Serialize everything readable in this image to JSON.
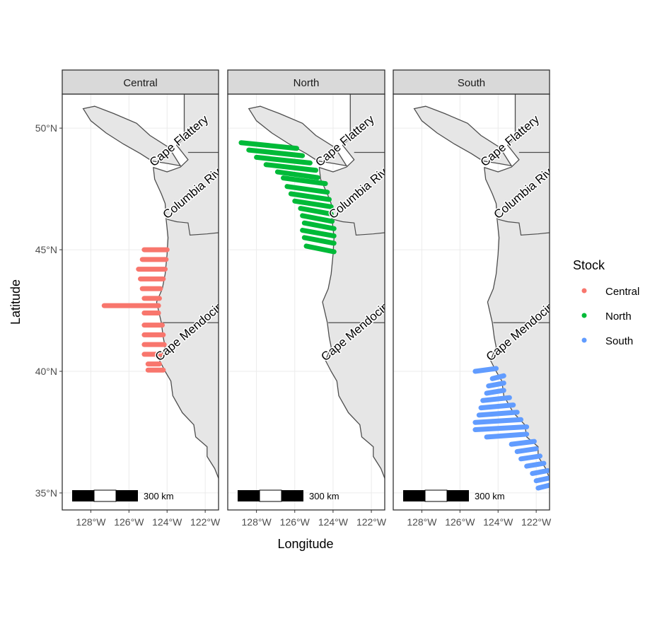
{
  "chart_data": {
    "type": "map",
    "xlabel": "Longitude",
    "ylabel": "Latitude",
    "xlim": [
      -129.5,
      -121.3
    ],
    "ylim": [
      34.3,
      51.4
    ],
    "x_ticks": [
      -128,
      -126,
      -124,
      -122
    ],
    "x_tick_labels": [
      "128°W",
      "126°W",
      "124°W",
      "122°W"
    ],
    "y_ticks": [
      35,
      40,
      45,
      50
    ],
    "y_tick_labels": [
      "35°N",
      "40°N",
      "45°N",
      "50°N"
    ],
    "facets": [
      "Central",
      "North",
      "South"
    ],
    "boundaries_lat": [
      49.0,
      42.0
    ],
    "places": [
      {
        "name": "Cape Flattery",
        "lon": -124.7,
        "lat": 48.4
      },
      {
        "name": "Columbia River",
        "lon": -124.0,
        "lat": 46.25
      },
      {
        "name": "Cape Mendocino",
        "lon": -124.4,
        "lat": 40.4
      }
    ],
    "scale_bar": {
      "label": "300 km"
    },
    "legend": {
      "title": "Stock",
      "placement": "right",
      "entries": [
        {
          "name": "Central",
          "color": "#F8766D"
        },
        {
          "name": "North",
          "color": "#00BA38"
        },
        {
          "name": "South",
          "color": "#619CFF"
        }
      ]
    },
    "series": [
      {
        "name": "Central",
        "transects": [
          {
            "lat": 45.0,
            "lon_start": -125.2,
            "lon_end": -124.0
          },
          {
            "lat": 44.6,
            "lon_start": -125.3,
            "lon_end": -124.05
          },
          {
            "lat": 44.2,
            "lon_start": -125.5,
            "lon_end": -124.1
          },
          {
            "lat": 43.8,
            "lon_start": -125.4,
            "lon_end": -124.2
          },
          {
            "lat": 43.4,
            "lon_start": -125.3,
            "lon_end": -124.35
          },
          {
            "lat": 43.0,
            "lon_start": -125.2,
            "lon_end": -124.4
          },
          {
            "lat": 42.7,
            "lon_start": -127.3,
            "lon_end": -124.45
          },
          {
            "lat": 42.4,
            "lon_start": -125.2,
            "lon_end": -124.45
          },
          {
            "lat": 41.9,
            "lon_start": -125.2,
            "lon_end": -124.25
          },
          {
            "lat": 41.5,
            "lon_start": -125.2,
            "lon_end": -124.2
          },
          {
            "lat": 41.1,
            "lon_start": -125.2,
            "lon_end": -124.15
          },
          {
            "lat": 40.7,
            "lon_start": -125.2,
            "lon_end": -124.35
          },
          {
            "lat": 40.3,
            "lon_start": -125.0,
            "lon_end": -124.4
          },
          {
            "lat": 40.05,
            "lon_start": -125.0,
            "lon_end": -124.2
          }
        ]
      },
      {
        "name": "North",
        "transects": [
          {
            "lat": 49.4,
            "lon_start": -128.8,
            "lon_end": -125.9
          },
          {
            "lat": 49.1,
            "lon_start": -128.4,
            "lon_end": -125.6
          },
          {
            "lat": 48.8,
            "lon_start": -128.0,
            "lon_end": -125.2
          },
          {
            "lat": 48.5,
            "lon_start": -127.5,
            "lon_end": -124.9
          },
          {
            "lat": 48.2,
            "lon_start": -126.9,
            "lon_end": -124.8
          },
          {
            "lat": 47.95,
            "lon_start": -126.6,
            "lon_end": -124.4
          },
          {
            "lat": 47.6,
            "lon_start": -126.4,
            "lon_end": -124.3
          },
          {
            "lat": 47.3,
            "lon_start": -126.2,
            "lon_end": -124.2
          },
          {
            "lat": 47.0,
            "lon_start": -126.0,
            "lon_end": -124.1
          },
          {
            "lat": 46.7,
            "lon_start": -125.7,
            "lon_end": -124.1
          },
          {
            "lat": 46.4,
            "lon_start": -125.6,
            "lon_end": -124.05
          },
          {
            "lat": 46.1,
            "lon_start": -125.5,
            "lon_end": -123.95
          },
          {
            "lat": 45.8,
            "lon_start": -125.6,
            "lon_end": -123.95
          },
          {
            "lat": 45.5,
            "lon_start": -125.5,
            "lon_end": -123.95
          },
          {
            "lat": 45.15,
            "lon_start": -125.4,
            "lon_end": -123.95
          }
        ]
      },
      {
        "name": "South",
        "transects": [
          {
            "lat": 40.0,
            "lon_start": -125.2,
            "lon_end": -124.1
          },
          {
            "lat": 39.7,
            "lon_start": -124.3,
            "lon_end": -123.7
          },
          {
            "lat": 39.4,
            "lon_start": -124.5,
            "lon_end": -123.7
          },
          {
            "lat": 39.1,
            "lon_start": -124.6,
            "lon_end": -123.7
          },
          {
            "lat": 38.8,
            "lon_start": -124.8,
            "lon_end": -123.4
          },
          {
            "lat": 38.5,
            "lon_start": -124.9,
            "lon_end": -123.2
          },
          {
            "lat": 38.2,
            "lon_start": -125.0,
            "lon_end": -123.0
          },
          {
            "lat": 37.9,
            "lon_start": -125.2,
            "lon_end": -122.8
          },
          {
            "lat": 37.6,
            "lon_start": -125.2,
            "lon_end": -122.5
          },
          {
            "lat": 37.3,
            "lon_start": -124.6,
            "lon_end": -122.5
          },
          {
            "lat": 37.0,
            "lon_start": -123.3,
            "lon_end": -122.1
          },
          {
            "lat": 36.7,
            "lon_start": -123.0,
            "lon_end": -122.0
          },
          {
            "lat": 36.4,
            "lon_start": -122.8,
            "lon_end": -121.8
          },
          {
            "lat": 36.1,
            "lon_start": -122.5,
            "lon_end": -121.6
          },
          {
            "lat": 35.8,
            "lon_start": -122.2,
            "lon_end": -121.4
          },
          {
            "lat": 35.5,
            "lon_start": -122.0,
            "lon_end": -121.3
          },
          {
            "lat": 35.2,
            "lon_start": -121.9,
            "lon_end": -121.3
          }
        ]
      }
    ]
  }
}
